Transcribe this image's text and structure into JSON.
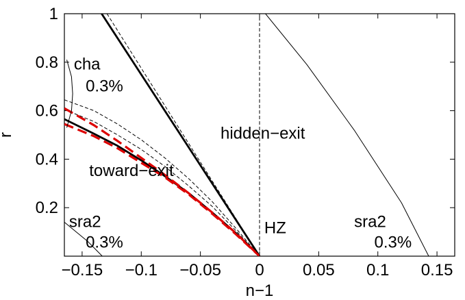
{
  "chart_data": {
    "type": "line",
    "xlabel": "n−1",
    "ylabel": "r",
    "xlim": [
      -0.165,
      0.165
    ],
    "ylim": [
      0,
      1
    ],
    "grid": false,
    "x_ticks": [
      {
        "value": -0.15,
        "label": "−0.15"
      },
      {
        "value": -0.1,
        "label": "−0.1"
      },
      {
        "value": -0.05,
        "label": "−0.05"
      },
      {
        "value": 0,
        "label": "0"
      },
      {
        "value": 0.05,
        "label": "0.05"
      },
      {
        "value": 0.1,
        "label": "0.1"
      },
      {
        "value": 0.15,
        "label": "0.15"
      }
    ],
    "y_ticks": [
      {
        "value": 0.2,
        "label": "0.2"
      },
      {
        "value": 0.4,
        "label": "0.4"
      },
      {
        "value": 0.6,
        "label": "0.6"
      },
      {
        "value": 0.8,
        "label": "0.8"
      },
      {
        "value": 1,
        "label": "1"
      }
    ],
    "series": [
      {
        "style": "thick-solid",
        "color": "#000000",
        "x": [
          -0.1335,
          0
        ],
        "y": [
          1,
          0
        ]
      },
      {
        "style": "thin-dashed",
        "color": "#000000",
        "x": [
          -0.129,
          0
        ],
        "y": [
          1,
          0
        ]
      },
      {
        "style": "thick-solid",
        "color": "#000000",
        "x": [
          -0.165,
          -0.14,
          -0.12,
          -0.1,
          -0.08,
          -0.06,
          -0.04,
          -0.02,
          0
        ],
        "y": [
          0.565,
          0.505,
          0.455,
          0.395,
          0.33,
          0.26,
          0.18,
          0.095,
          0
        ]
      },
      {
        "style": "thin-dashed",
        "color": "#000000",
        "x": [
          -0.165,
          -0.14,
          -0.12,
          -0.1,
          -0.08,
          -0.06,
          -0.04,
          -0.02,
          0
        ],
        "y": [
          0.605,
          0.555,
          0.5,
          0.44,
          0.37,
          0.29,
          0.205,
          0.105,
          0
        ]
      },
      {
        "style": "thin-dashed",
        "color": "#000000",
        "x": [
          -0.165,
          -0.14,
          -0.12,
          -0.1,
          -0.08,
          -0.06,
          -0.04,
          -0.02,
          0
        ],
        "y": [
          0.645,
          0.6,
          0.545,
          0.48,
          0.405,
          0.32,
          0.225,
          0.115,
          0
        ]
      },
      {
        "style": "thick-dashed",
        "color": "#dd0000",
        "x": [
          -0.165,
          -0.14,
          -0.12,
          -0.1,
          -0.08,
          -0.06,
          -0.04,
          -0.02,
          0
        ],
        "y": [
          0.61,
          0.54,
          0.475,
          0.405,
          0.335,
          0.26,
          0.18,
          0.095,
          0
        ]
      },
      {
        "style": "thick-dashed",
        "color": "#dd0000",
        "x": [
          -0.165,
          -0.14,
          -0.12,
          -0.1,
          -0.08,
          -0.06,
          -0.04,
          -0.02,
          0
        ],
        "y": [
          0.545,
          0.495,
          0.445,
          0.385,
          0.325,
          0.255,
          0.175,
          0.09,
          0
        ]
      },
      {
        "style": "thin-dashed",
        "color": "#000000",
        "x": [
          0,
          0
        ],
        "y": [
          0,
          1
        ]
      },
      {
        "style": "thin-solid",
        "color": "#000000",
        "x": [
          0.005,
          0.04,
          0.08,
          0.12,
          0.143
        ],
        "y": [
          1,
          0.79,
          0.52,
          0.22,
          0
        ]
      },
      {
        "style": "thin-solid",
        "color": "#000000",
        "x": [
          -0.165,
          -0.155,
          -0.145,
          -0.138,
          -0.133
        ],
        "y": [
          0.14,
          0.1,
          0.06,
          0.025,
          0
        ]
      },
      {
        "style": "thin-solid",
        "color": "#000000",
        "x": [
          -0.163,
          -0.159,
          -0.158,
          -0.159,
          -0.163
        ],
        "y": [
          0.81,
          0.74,
          0.67,
          0.6,
          0.53
        ]
      }
    ],
    "annotations": [
      {
        "text": "cha",
        "x": -0.157,
        "y": 0.77
      },
      {
        "text": "0.3%",
        "x": -0.147,
        "y": 0.68
      },
      {
        "text": "hidden−exit",
        "x": -0.033,
        "y": 0.485
      },
      {
        "text": "toward−exit",
        "x": -0.144,
        "y": 0.33
      },
      {
        "text": "sra2",
        "x": -0.161,
        "y": 0.12
      },
      {
        "text": "0.3%",
        "x": -0.147,
        "y": 0.035
      },
      {
        "text": "HZ",
        "x": 0.004,
        "y": 0.095
      },
      {
        "text": "sra2",
        "x": 0.08,
        "y": 0.12
      },
      {
        "text": "0.3%",
        "x": 0.097,
        "y": 0.035
      }
    ]
  }
}
